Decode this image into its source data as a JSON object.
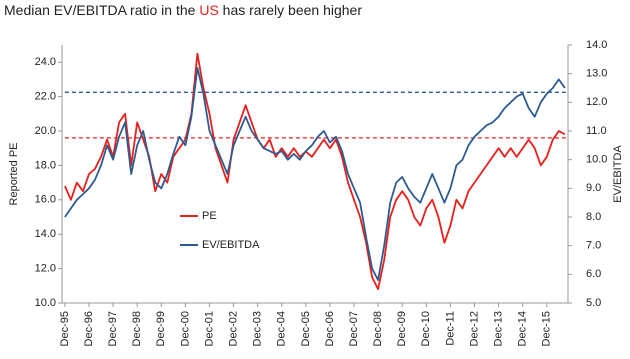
{
  "chart_data": {
    "type": "line",
    "title_parts": [
      {
        "text": "Median EV/EBITDA ratio in the ",
        "color": "#222222"
      },
      {
        "text": "US",
        "color": "#e8201c"
      },
      {
        "text": " has rarely been higher",
        "color": "#222222"
      }
    ],
    "y_label": "Reported PE",
    "y2_label": "EV/EBITDA",
    "x": [
      1995.92,
      1996.17,
      1996.42,
      1996.67,
      1996.92,
      1997.17,
      1997.42,
      1997.67,
      1997.92,
      1998.17,
      1998.42,
      1998.67,
      1998.92,
      1999.17,
      1999.42,
      1999.67,
      1999.92,
      2000.17,
      2000.42,
      2000.67,
      2000.92,
      2001.17,
      2001.42,
      2001.67,
      2001.92,
      2002.17,
      2002.42,
      2002.67,
      2002.92,
      2003.17,
      2003.42,
      2003.67,
      2003.92,
      2004.17,
      2004.42,
      2004.67,
      2004.92,
      2005.17,
      2005.42,
      2005.67,
      2005.92,
      2006.17,
      2006.42,
      2006.67,
      2006.92,
      2007.17,
      2007.42,
      2007.67,
      2007.92,
      2008.17,
      2008.42,
      2008.67,
      2008.92,
      2009.17,
      2009.42,
      2009.67,
      2009.92,
      2010.17,
      2010.42,
      2010.67,
      2010.92,
      2011.17,
      2011.42,
      2011.67,
      2011.92,
      2012.17,
      2012.42,
      2012.67,
      2012.92,
      2013.17,
      2013.42,
      2013.67,
      2013.92,
      2014.17,
      2014.42,
      2014.67,
      2014.92,
      2015.17,
      2015.42,
      2015.67,
      2015.92,
      2016.17,
      2016.42,
      2016.67
    ],
    "series": [
      {
        "name": "PE",
        "color": "#e8201c",
        "axis": "y",
        "values": [
          16.8,
          16.0,
          17.0,
          16.5,
          17.5,
          17.8,
          18.5,
          19.5,
          18.5,
          20.5,
          21.0,
          18.0,
          20.5,
          19.5,
          18.5,
          16.5,
          17.5,
          17.0,
          18.5,
          19.0,
          19.5,
          21.0,
          24.5,
          22.5,
          21.0,
          19.0,
          18.0,
          17.0,
          19.5,
          20.5,
          21.5,
          20.5,
          19.5,
          19.0,
          19.5,
          18.5,
          19.0,
          18.5,
          19.0,
          18.5,
          18.8,
          18.5,
          19.0,
          19.5,
          19.0,
          19.5,
          18.5,
          17.0,
          16.0,
          15.0,
          13.5,
          11.5,
          10.8,
          12.5,
          15.0,
          16.0,
          16.5,
          16.0,
          15.0,
          14.5,
          15.5,
          16.0,
          15.0,
          13.5,
          14.5,
          16.0,
          15.5,
          16.5,
          17.0,
          17.5,
          18.0,
          18.5,
          19.0,
          18.5,
          19.0,
          18.5,
          19.0,
          19.5,
          19.0,
          18.0,
          18.5,
          19.5,
          20.0,
          19.8
        ]
      },
      {
        "name": "EV/EBITDA",
        "color": "#2d5b91",
        "axis": "y2",
        "values": [
          8.0,
          8.3,
          8.6,
          8.8,
          9.0,
          9.3,
          9.8,
          10.5,
          10.0,
          10.8,
          11.3,
          9.5,
          10.5,
          11.0,
          10.0,
          9.2,
          9.0,
          9.5,
          10.2,
          10.8,
          10.5,
          11.5,
          13.2,
          12.3,
          11.0,
          10.5,
          10.0,
          9.5,
          10.5,
          11.0,
          11.5,
          11.0,
          10.7,
          10.4,
          10.3,
          10.2,
          10.3,
          10.0,
          10.2,
          10.0,
          10.3,
          10.5,
          10.8,
          11.0,
          10.6,
          10.8,
          10.3,
          9.5,
          9.0,
          8.5,
          7.3,
          6.2,
          5.8,
          7.0,
          8.5,
          9.2,
          9.4,
          9.0,
          8.7,
          8.5,
          9.0,
          9.5,
          9.0,
          8.5,
          9.0,
          9.8,
          10.0,
          10.5,
          10.8,
          11.0,
          11.2,
          11.3,
          11.5,
          11.8,
          12.0,
          12.2,
          12.3,
          11.8,
          11.5,
          12.0,
          12.3,
          12.5,
          12.8,
          12.5
        ]
      }
    ],
    "reference_lines": [
      {
        "value": 19.6,
        "color": "#e8201c",
        "axis": "y"
      },
      {
        "value": 12.35,
        "color": "#2d5b91",
        "axis": "y2"
      }
    ],
    "xlim": [
      1995.8,
      2016.8
    ],
    "xticks": [
      {
        "value": 1995.92,
        "label": "Dec-95"
      },
      {
        "value": 1996.92,
        "label": "Dec-96"
      },
      {
        "value": 1997.92,
        "label": "Dec-97"
      },
      {
        "value": 1998.92,
        "label": "Dec-98"
      },
      {
        "value": 1999.92,
        "label": "Dec-99"
      },
      {
        "value": 2000.92,
        "label": "Dec-00"
      },
      {
        "value": 2001.92,
        "label": "Dec-01"
      },
      {
        "value": 2002.92,
        "label": "Dec-02"
      },
      {
        "value": 2003.92,
        "label": "Dec-03"
      },
      {
        "value": 2004.92,
        "label": "Dec-04"
      },
      {
        "value": 2005.92,
        "label": "Dec-05"
      },
      {
        "value": 2006.92,
        "label": "Dec-06"
      },
      {
        "value": 2007.92,
        "label": "Dec-07"
      },
      {
        "value": 2008.92,
        "label": "Dec-08"
      },
      {
        "value": 2009.92,
        "label": "Dec-09"
      },
      {
        "value": 2010.92,
        "label": "Dec-10"
      },
      {
        "value": 2011.92,
        "label": "Dec-11"
      },
      {
        "value": 2012.92,
        "label": "Dec-12"
      },
      {
        "value": 2013.92,
        "label": "Dec-13"
      },
      {
        "value": 2014.92,
        "label": "Dec-14"
      },
      {
        "value": 2015.92,
        "label": "Dec-15"
      }
    ],
    "ylim": [
      10,
      25
    ],
    "yticks": [
      {
        "value": 10,
        "label": "10.0"
      },
      {
        "value": 12,
        "label": "12.0"
      },
      {
        "value": 14,
        "label": "14.0"
      },
      {
        "value": 16,
        "label": "16.0"
      },
      {
        "value": 18,
        "label": "18.0"
      },
      {
        "value": 20,
        "label": "20.0"
      },
      {
        "value": 22,
        "label": "22.0"
      },
      {
        "value": 24,
        "label": "24.0"
      }
    ],
    "y2lim": [
      5,
      14
    ],
    "y2ticks": [
      {
        "value": 5,
        "label": "5.0"
      },
      {
        "value": 6,
        "label": "6.0"
      },
      {
        "value": 7,
        "label": "7.0"
      },
      {
        "value": 8,
        "label": "8.0"
      },
      {
        "value": 9,
        "label": "9.0"
      },
      {
        "value": 10,
        "label": "10.0"
      },
      {
        "value": 11,
        "label": "11.0"
      },
      {
        "value": 12,
        "label": "12.0"
      },
      {
        "value": 13,
        "label": "13.0"
      },
      {
        "value": 14,
        "label": "14.0"
      }
    ],
    "grid": false,
    "legend": "left"
  }
}
